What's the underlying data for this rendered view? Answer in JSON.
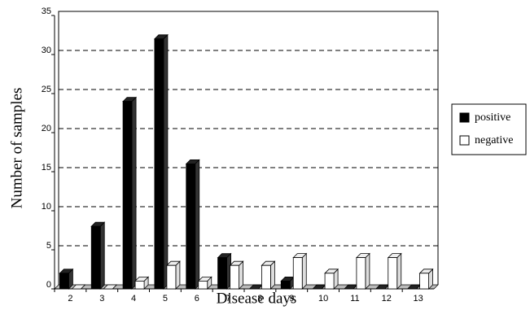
{
  "chart_data": {
    "type": "bar3d",
    "x_label": "Disease days",
    "y_label": "Number of samples",
    "categories": [
      "2",
      "3",
      "4",
      "5",
      "6",
      "7",
      "8",
      "9",
      "10",
      "11",
      "12",
      "13"
    ],
    "series": [
      {
        "name": "positive",
        "color": "#000000",
        "values": [
          2,
          8,
          24,
          32,
          16,
          4,
          0,
          1,
          0,
          0,
          0,
          0
        ]
      },
      {
        "name": "negative",
        "color": "#ffffff",
        "values": [
          0,
          0,
          1,
          3,
          1,
          3,
          3,
          4,
          2,
          4,
          4,
          2
        ]
      }
    ],
    "ylim": [
      0,
      35
    ],
    "yticks": [
      0,
      5,
      10,
      15,
      20,
      25,
      30,
      35
    ],
    "grid": true,
    "legend": "right"
  }
}
